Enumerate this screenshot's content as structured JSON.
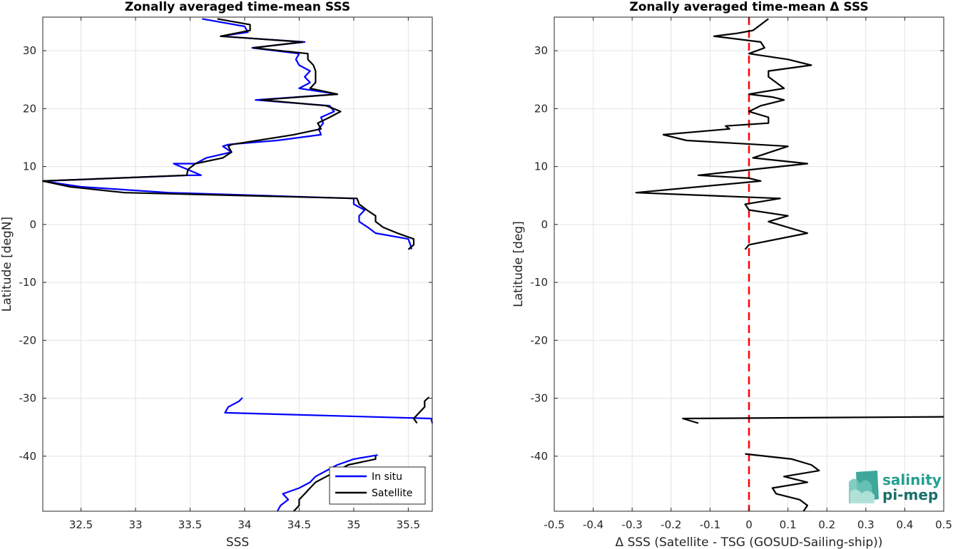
{
  "chart_data": [
    {
      "type": "line",
      "title": "Zonally averaged time-mean SSS",
      "xlabel": "SSS",
      "ylabel": "Latitude [degN]",
      "xlim": [
        32.15,
        35.72
      ],
      "ylim": [
        -49.5,
        35.8
      ],
      "xticks": [
        "32.5",
        "33",
        "33.5",
        "34",
        "34.5",
        "35",
        "35.5"
      ],
      "yticks": [
        "30",
        "20",
        "10",
        "0",
        "-10",
        "-20",
        "-30",
        "-40"
      ],
      "grid": true,
      "legend": {
        "placement": "bottom-right",
        "entries": [
          "In situ",
          "Satellite"
        ]
      },
      "series": [
        {
          "name": "In situ",
          "color": "#0000ff",
          "segments": [
            [
              [
                33.61,
                35.5
              ],
              [
                34.0,
                34.2
              ],
              [
                34.03,
                33.2
              ],
              [
                33.78,
                32.5
              ],
              [
                34.55,
                31.5
              ],
              [
                34.07,
                30.5
              ],
              [
                34.5,
                29.5
              ],
              [
                34.47,
                28.5
              ],
              [
                34.5,
                27.5
              ],
              [
                34.6,
                26.5
              ],
              [
                34.55,
                25.5
              ],
              [
                34.6,
                24.5
              ],
              [
                34.5,
                23.5
              ],
              [
                34.85,
                22.5
              ],
              [
                34.1,
                21.5
              ],
              [
                34.78,
                20.5
              ],
              [
                34.82,
                19.5
              ],
              [
                34.7,
                18.5
              ],
              [
                34.72,
                17.5
              ],
              [
                34.68,
                16.5
              ],
              [
                34.7,
                15.5
              ],
              [
                34.3,
                14.5
              ],
              [
                33.85,
                13.8
              ],
              [
                33.8,
                13.5
              ],
              [
                33.88,
                12.5
              ],
              [
                33.65,
                11.5
              ],
              [
                33.55,
                10.5
              ],
              [
                33.35,
                10.5
              ],
              [
                33.6,
                8.5
              ],
              [
                33.5,
                8.5
              ],
              [
                32.15,
                7.5
              ],
              [
                32.5,
                6.5
              ],
              [
                33.3,
                5.5
              ],
              [
                35.0,
                4.5
              ],
              [
                35.0,
                3.5
              ],
              [
                35.1,
                2.5
              ],
              [
                35.05,
                1.5
              ],
              [
                35.05,
                0.5
              ],
              [
                35.13,
                -0.5
              ],
              [
                35.2,
                -1.5
              ],
              [
                35.5,
                -2.5
              ],
              [
                35.52,
                -3.5
              ],
              [
                35.53,
                -4.3
              ]
            ],
            [
              [
                33.98,
                -29.9
              ],
              [
                33.95,
                -30.5
              ],
              [
                33.85,
                -31.5
              ],
              [
                33.82,
                -32.5
              ],
              [
                35.71,
                -33.5
              ],
              [
                35.72,
                -34.3
              ]
            ],
            [
              [
                35.22,
                -39.8
              ],
              [
                35.0,
                -40.5
              ],
              [
                34.85,
                -41.5
              ],
              [
                34.75,
                -42.5
              ],
              [
                34.65,
                -43.5
              ],
              [
                34.6,
                -44.5
              ],
              [
                34.5,
                -45.5
              ],
              [
                34.35,
                -46.5
              ],
              [
                34.4,
                -47.5
              ],
              [
                34.33,
                -48.5
              ],
              [
                34.3,
                -49.5
              ]
            ]
          ]
        },
        {
          "name": "Satellite",
          "color": "#000000",
          "segments": [
            [
              [
                33.75,
                35.5
              ],
              [
                34.05,
                34.5
              ],
              [
                34.05,
                33.5
              ],
              [
                33.78,
                32.5
              ],
              [
                34.53,
                31.5
              ],
              [
                34.08,
                30.5
              ],
              [
                34.58,
                29.5
              ],
              [
                34.58,
                28.5
              ],
              [
                34.63,
                27.5
              ],
              [
                34.65,
                26.5
              ],
              [
                34.65,
                25.5
              ],
              [
                34.65,
                24.5
              ],
              [
                34.6,
                23.5
              ],
              [
                34.85,
                22.5
              ],
              [
                34.15,
                21.5
              ],
              [
                34.75,
                20.5
              ],
              [
                34.88,
                19.5
              ],
              [
                34.78,
                18.5
              ],
              [
                34.67,
                17.5
              ],
              [
                34.7,
                16.5
              ],
              [
                34.45,
                15.5
              ],
              [
                34.12,
                14.5
              ],
              [
                33.88,
                13.8
              ],
              [
                33.85,
                13.5
              ],
              [
                33.88,
                12.5
              ],
              [
                33.8,
                11.5
              ],
              [
                33.55,
                10.5
              ],
              [
                33.48,
                9.5
              ],
              [
                33.47,
                8.5
              ],
              [
                32.15,
                7.5
              ],
              [
                32.4,
                6.5
              ],
              [
                32.9,
                5.5
              ],
              [
                35.03,
                4.5
              ],
              [
                35.05,
                3.5
              ],
              [
                35.12,
                2.5
              ],
              [
                35.2,
                1.5
              ],
              [
                35.2,
                0.5
              ],
              [
                35.27,
                -0.5
              ],
              [
                35.4,
                -1.5
              ],
              [
                35.55,
                -2.5
              ],
              [
                35.55,
                -3.5
              ],
              [
                35.5,
                -4.3
              ]
            ],
            [
              [
                35.69,
                -29.8
              ],
              [
                35.65,
                -30.5
              ],
              [
                35.65,
                -31.5
              ],
              [
                35.6,
                -32.5
              ],
              [
                35.55,
                -33.5
              ],
              [
                35.58,
                -34.3
              ]
            ],
            [
              [
                35.2,
                -40.0
              ],
              [
                35.2,
                -40.5
              ],
              [
                34.95,
                -41.5
              ],
              [
                34.85,
                -42.5
              ],
              [
                34.75,
                -43.5
              ],
              [
                34.65,
                -44.5
              ],
              [
                34.6,
                -45.5
              ],
              [
                34.55,
                -46.5
              ],
              [
                34.5,
                -47.5
              ],
              [
                34.5,
                -48.5
              ],
              [
                34.45,
                -49.5
              ]
            ]
          ]
        }
      ]
    },
    {
      "type": "line",
      "title": "Zonally averaged time-mean Δ SSS",
      "xlabel": "Δ SSS (Satellite - TSG (GOSUD-Sailing-ship))",
      "ylabel": "Latitude [deg]",
      "xlim": [
        -0.5,
        0.5
      ],
      "ylim": [
        -49.5,
        35.8
      ],
      "xticks": [
        "-0.5",
        "-0.4",
        "-0.3",
        "-0.2",
        "-0.1",
        "0",
        "0.1",
        "0.2",
        "0.3",
        "0.4",
        "0.5"
      ],
      "yticks": [
        "30",
        "20",
        "10",
        "0",
        "-10",
        "-20",
        "-30",
        "-40"
      ],
      "grid": true,
      "reference_line": {
        "x": 0,
        "color": "#ff0000",
        "style": "dashed"
      },
      "series": [
        {
          "color": "#000000",
          "segments": [
            [
              [
                0.05,
                35.5
              ],
              [
                0.03,
                34.5
              ],
              [
                0.01,
                33.5
              ],
              [
                -0.03,
                33.0
              ],
              [
                -0.09,
                32.5
              ],
              [
                0.03,
                31.5
              ],
              [
                0.04,
                30.5
              ],
              [
                0.0,
                29.5
              ],
              [
                0.1,
                28.5
              ],
              [
                0.16,
                27.5
              ],
              [
                0.05,
                26.5
              ],
              [
                0.05,
                25.5
              ],
              [
                0.07,
                24.5
              ],
              [
                0.09,
                23.5
              ],
              [
                0.0,
                22.5
              ],
              [
                0.06,
                22.0
              ],
              [
                0.09,
                21.5
              ],
              [
                0.03,
                20.5
              ],
              [
                0.0,
                19.5
              ],
              [
                0.05,
                18.5
              ],
              [
                0.05,
                17.5
              ],
              [
                -0.06,
                17.0
              ],
              [
                -0.05,
                16.5
              ],
              [
                -0.22,
                15.5
              ],
              [
                -0.16,
                14.5
              ],
              [
                0.1,
                13.5
              ],
              [
                0.01,
                11.5
              ],
              [
                0.15,
                10.5
              ],
              [
                -0.13,
                8.5
              ],
              [
                0.0,
                8.0
              ],
              [
                0.03,
                7.5
              ],
              [
                -0.29,
                5.5
              ],
              [
                0.08,
                4.5
              ],
              [
                -0.01,
                3.5
              ],
              [
                0.0,
                2.5
              ],
              [
                0.1,
                1.5
              ],
              [
                0.05,
                0.5
              ],
              [
                0.15,
                -1.5
              ],
              [
                0.0,
                -3.5
              ],
              [
                -0.01,
                -4.3
              ]
            ],
            [
              [
                0.5,
                -33.2
              ],
              [
                -0.17,
                -33.5
              ],
              [
                -0.13,
                -34.3
              ]
            ],
            [
              [
                -0.01,
                -39.6
              ],
              [
                0.11,
                -40.5
              ],
              [
                0.16,
                -41.5
              ],
              [
                0.18,
                -42.5
              ],
              [
                0.09,
                -43.5
              ],
              [
                0.15,
                -44.5
              ],
              [
                0.06,
                -45.5
              ],
              [
                0.07,
                -46.5
              ],
              [
                0.13,
                -47.5
              ],
              [
                0.15,
                -48.5
              ],
              [
                0.14,
                -49.5
              ]
            ]
          ]
        }
      ]
    }
  ],
  "logo": {
    "line1": "salinity",
    "line2": "pi-mep"
  }
}
